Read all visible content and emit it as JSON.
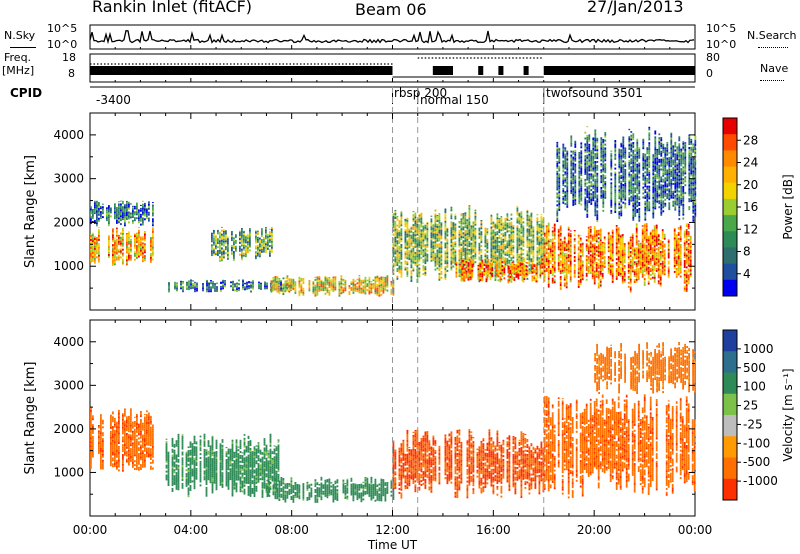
{
  "header": {
    "title": "Rankin Inlet (fitACF)",
    "beam": "Beam 06",
    "date": "27/Jan/2013"
  },
  "top_panels": {
    "nsky_label": "N.Sky",
    "nsky_ticks": [
      "10^5",
      "10^0"
    ],
    "nsearch_label": "N.Search",
    "freq_label": "Freq.",
    "freq_unit": "[MHz]",
    "freq_ticks": [
      "18",
      "8"
    ],
    "nave_ticks": [
      "80",
      "0"
    ],
    "nave_label": "Nave",
    "cpid_label": "CPID"
  },
  "cpid_segments": [
    {
      "label": "-3400"
    },
    {
      "label": "rbsp 200"
    },
    {
      "label": "normal 150"
    },
    {
      "label": "twofsound 3501"
    }
  ],
  "colorbar_power": {
    "label": "Power [dB]",
    "ticks": [
      "28",
      "24",
      "20",
      "16",
      "12",
      "8",
      "4"
    ],
    "colors": [
      "#e60000",
      "#ff4a00",
      "#ff8a00",
      "#ffb000",
      "#f2d300",
      "#9acd32",
      "#4aa84a",
      "#2e8b57",
      "#2e6e6e",
      "#1f4f9e",
      "#0000ee"
    ]
  },
  "colorbar_velocity": {
    "label": "Velocity [m s⁻¹]",
    "ticks": [
      "1000",
      "500",
      "100",
      "25",
      "-25",
      "-100",
      "-500",
      "-1000"
    ],
    "colors": [
      "#1f3f9f",
      "#2e6e8e",
      "#2e8b57",
      "#7cc24a",
      "#bdbdbd",
      "#ff9a00",
      "#ff7000",
      "#ff3000"
    ]
  },
  "chart_data": [
    {
      "type": "heatmap",
      "title": "Power",
      "ylabel": "Slant Range [km]",
      "xlabel": "",
      "ylim": [
        0,
        4500
      ],
      "yticks": [
        "4000",
        "3000",
        "2000",
        "1000"
      ],
      "xlim_hours": [
        0,
        24
      ],
      "x_marker_hours": [
        12,
        13,
        18
      ],
      "regions": [
        {
          "t0": 0.0,
          "t1": 2.5,
          "r0": 1000,
          "r1": 1900,
          "value": 22
        },
        {
          "t0": 0.0,
          "t1": 2.5,
          "r0": 1900,
          "r1": 2500,
          "value": 10
        },
        {
          "t0": 3.1,
          "t1": 8.0,
          "r0": 400,
          "r1": 700,
          "value": 10
        },
        {
          "t0": 4.8,
          "t1": 7.2,
          "r0": 1100,
          "r1": 1900,
          "value": 14
        },
        {
          "t0": 7.0,
          "t1": 12.0,
          "r0": 300,
          "r1": 800,
          "value": 20
        },
        {
          "t0": 12.0,
          "t1": 18.0,
          "r0": 600,
          "r1": 2400,
          "value": 16
        },
        {
          "t0": 14.5,
          "t1": 18.0,
          "r0": 600,
          "r1": 1200,
          "value": 24
        },
        {
          "t0": 18.0,
          "t1": 24.0,
          "r0": 400,
          "r1": 2000,
          "value": 24
        },
        {
          "t0": 18.5,
          "t1": 24.0,
          "r0": 2000,
          "r1": 4200,
          "value": 10
        }
      ]
    },
    {
      "type": "heatmap",
      "title": "Velocity",
      "ylabel": "Slant Range [km]",
      "xlabel": "Time UT",
      "ylim": [
        0,
        4500
      ],
      "yticks": [
        "4000",
        "3000",
        "2000",
        "1000"
      ],
      "xlim_hours": [
        0,
        24
      ],
      "xticks": [
        "00:00",
        "04:00",
        "08:00",
        "12:00",
        "16:00",
        "20:00",
        "00:00"
      ],
      "x_marker_hours": [
        12,
        13,
        18
      ],
      "regions": [
        {
          "t0": 0.0,
          "t1": 2.5,
          "r0": 1000,
          "r1": 2500,
          "value": -200
        },
        {
          "t0": 3.0,
          "t1": 7.5,
          "r0": 400,
          "r1": 1900,
          "value": 150
        },
        {
          "t0": 7.0,
          "t1": 12.0,
          "r0": 300,
          "r1": 900,
          "value": 150
        },
        {
          "t0": 12.0,
          "t1": 18.0,
          "r0": 400,
          "r1": 2000,
          "value": -300
        },
        {
          "t0": 18.0,
          "t1": 24.0,
          "r0": 400,
          "r1": 2800,
          "value": -200
        },
        {
          "t0": 20.0,
          "t1": 24.0,
          "r0": 2800,
          "r1": 4000,
          "value": -150
        }
      ]
    }
  ]
}
